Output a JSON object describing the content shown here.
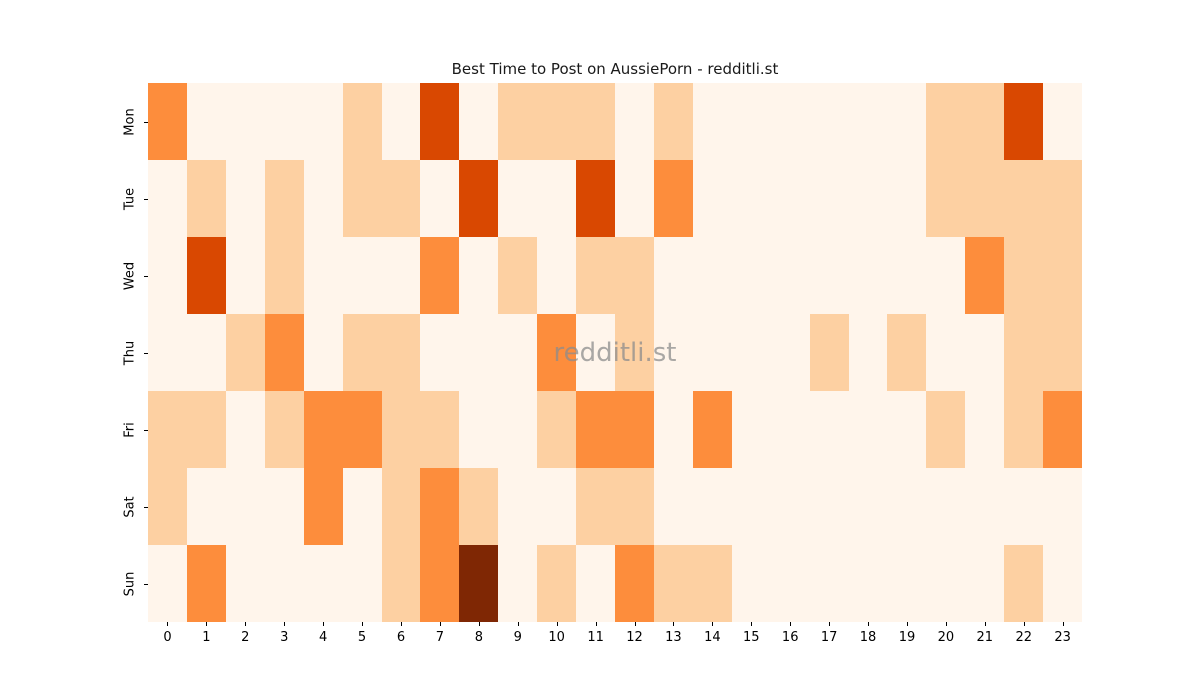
{
  "title": "Best Time to Post on AussiePorn - redditli.st",
  "watermark": "redditli.st",
  "chart_data": {
    "type": "heatmap",
    "title": "Best Time to Post on AussiePorn - redditli.st",
    "xlabel": "",
    "ylabel": "",
    "x_labels": [
      "0",
      "1",
      "2",
      "3",
      "4",
      "5",
      "6",
      "7",
      "8",
      "9",
      "10",
      "11",
      "12",
      "13",
      "14",
      "15",
      "16",
      "17",
      "18",
      "19",
      "20",
      "21",
      "22",
      "23"
    ],
    "y_labels": [
      "Mon",
      "Tue",
      "Wed",
      "Thu",
      "Fri",
      "Sat",
      "Sun"
    ],
    "values": [
      [
        2,
        0,
        0,
        0,
        0,
        1,
        0,
        3,
        0,
        1,
        1,
        1,
        0,
        1,
        0,
        0,
        0,
        0,
        0,
        0,
        1,
        1,
        3,
        0
      ],
      [
        0,
        1,
        0,
        1,
        0,
        1,
        1,
        0,
        3,
        0,
        0,
        3,
        0,
        2,
        0,
        0,
        0,
        0,
        0,
        0,
        1,
        1,
        1,
        1
      ],
      [
        0,
        3,
        0,
        1,
        0,
        0,
        0,
        2,
        0,
        1,
        0,
        1,
        1,
        0,
        0,
        0,
        0,
        0,
        0,
        0,
        0,
        2,
        1,
        1
      ],
      [
        0,
        0,
        1,
        2,
        0,
        1,
        1,
        0,
        0,
        0,
        2,
        0,
        1,
        0,
        0,
        0,
        0,
        1,
        0,
        1,
        0,
        0,
        1,
        1
      ],
      [
        1,
        1,
        0,
        1,
        2,
        2,
        1,
        1,
        0,
        0,
        1,
        2,
        2,
        0,
        2,
        0,
        0,
        0,
        0,
        0,
        1,
        0,
        1,
        2
      ],
      [
        1,
        0,
        0,
        0,
        2,
        0,
        1,
        2,
        1,
        0,
        0,
        1,
        1,
        0,
        0,
        0,
        0,
        0,
        0,
        0,
        0,
        0,
        0,
        0
      ],
      [
        0,
        2,
        0,
        0,
        0,
        0,
        1,
        2,
        4,
        0,
        1,
        0,
        2,
        1,
        1,
        0,
        0,
        0,
        0,
        0,
        0,
        0,
        1,
        0
      ]
    ],
    "value_range": [
      0,
      4
    ],
    "colormap_name": "Oranges",
    "palette": [
      "#FFF5EB",
      "#FDD0A2",
      "#FD8D3C",
      "#D94801",
      "#7F2704"
    ],
    "grid": false,
    "legend": false
  }
}
